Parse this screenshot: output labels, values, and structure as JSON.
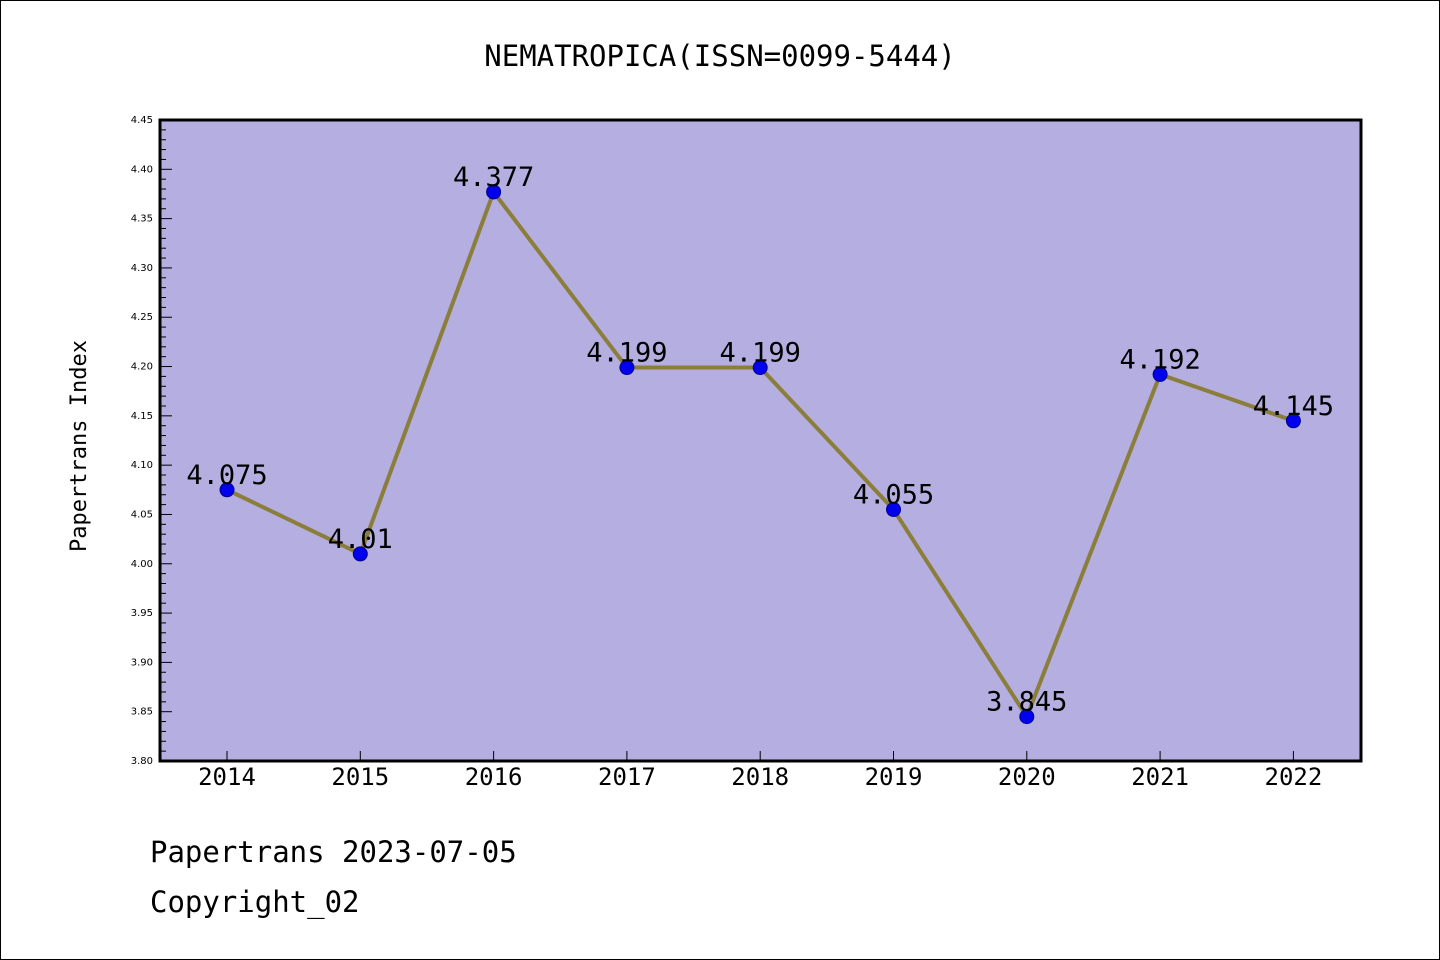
{
  "colors": {
    "plot_background": "#b5aee1",
    "line": "#8b7d3a",
    "marker": "#0000ee",
    "axis": "#000000"
  },
  "chart_data": {
    "type": "line",
    "title": "NEMATROPICA(ISSN=0099-5444)",
    "xlabel": "",
    "ylabel": "Papertrans Index",
    "categories": [
      "2014",
      "2015",
      "2016",
      "2017",
      "2018",
      "2019",
      "2020",
      "2021",
      "2022"
    ],
    "values": [
      4.075,
      4.01,
      4.377,
      4.199,
      4.199,
      4.055,
      3.845,
      4.192,
      4.145
    ],
    "data_labels": [
      "4.075",
      "4.01",
      "4.377",
      "4.199",
      "4.199",
      "4.055",
      "3.845",
      "4.192",
      "4.145"
    ],
    "ylim": [
      3.8,
      4.45
    ],
    "y_ticks": [
      3.8,
      3.85,
      3.9,
      3.95,
      4.0,
      4.05,
      4.1,
      4.15,
      4.2,
      4.25,
      4.3,
      4.35,
      4.4,
      4.45
    ],
    "y_tick_labels": [
      "3.80",
      "3.85",
      "3.90",
      "3.95",
      "4.00",
      "4.05",
      "4.10",
      "4.15",
      "4.20",
      "4.25",
      "4.30",
      "4.35",
      "4.40",
      "4.45"
    ],
    "grid": false,
    "legend": "none"
  },
  "footer": {
    "date_line": "Papertrans 2023-07-05",
    "copyright": "Copyright_02"
  }
}
